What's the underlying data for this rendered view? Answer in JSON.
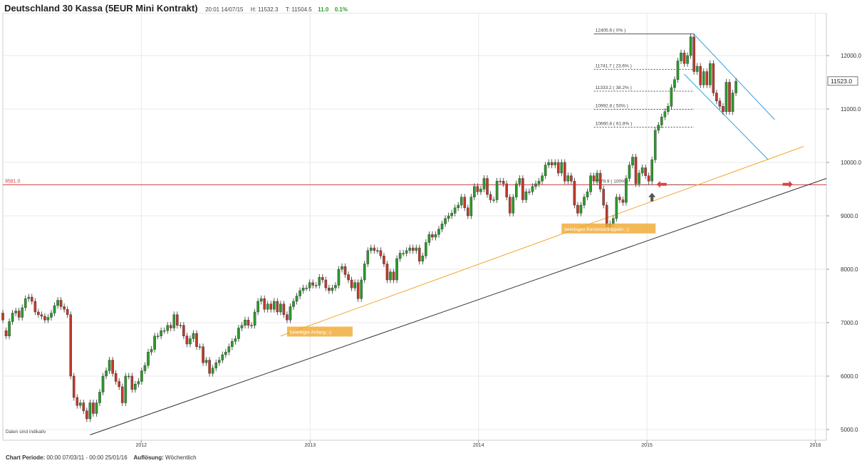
{
  "header": {
    "title": "Deutschland 30 Kassa (5EUR Mini Kontrakt)",
    "time": "20:01 14/07/15",
    "high": "H: 11532.3",
    "low": "T: 11504.5",
    "change": "11.0",
    "change_pct": "0.1%"
  },
  "footer": {
    "period_label": "Chart Periode:",
    "period_value": "00:00 07/03/11 - 00:00 25/01/16",
    "resolution_label": "Auflösung:",
    "resolution_value": "Wöchentlich"
  },
  "disclaimer": "Daten sind indikativ",
  "colors": {
    "up": "#2a9a2a",
    "down": "#c0392b",
    "grid": "#e8e8e8",
    "support": "#333333",
    "parallel": "#f0a830",
    "channel": "#3aa0d8",
    "hline": "#d04040",
    "marker": "#e04040"
  },
  "chart_data": {
    "type": "candlestick",
    "y_axis": {
      "ticks": [
        5000,
        6000,
        7000,
        8000,
        9000,
        10000,
        11000,
        12000
      ],
      "tick_labels": [
        "5000.0",
        "6000.0",
        "7000.0",
        "8000.0",
        "9000.0",
        "10000.0",
        "11000.0",
        "12000.0"
      ],
      "range": [
        4800,
        12800
      ],
      "position": "right"
    },
    "x_axis": {
      "ticks": [
        "2012-01-01",
        "2013-01-01",
        "2014-01-01",
        "2015-01-01",
        "2016-01-01"
      ],
      "tick_labels": [
        "2012",
        "2013",
        "2014",
        "2015",
        "2016"
      ],
      "range": [
        "2011-03-07",
        "2016-01-25"
      ]
    },
    "last_price": "11523.0",
    "grid": true,
    "candles": [
      [
        "2011-03-07",
        7180,
        7050
      ],
      [
        "2011-03-14",
        6850,
        6750
      ],
      [
        "2011-03-21",
        6750,
        7020
      ],
      [
        "2011-03-28",
        7020,
        7180
      ],
      [
        "2011-04-04",
        7180,
        7220
      ],
      [
        "2011-04-11",
        7220,
        7100
      ],
      [
        "2011-04-18",
        7100,
        7280
      ],
      [
        "2011-04-25",
        7280,
        7450
      ],
      [
        "2011-05-02",
        7450,
        7480
      ],
      [
        "2011-05-09",
        7480,
        7400
      ],
      [
        "2011-05-16",
        7400,
        7200
      ],
      [
        "2011-05-23",
        7200,
        7150
      ],
      [
        "2011-05-30",
        7150,
        7120
      ],
      [
        "2011-06-06",
        7120,
        7050
      ],
      [
        "2011-06-13",
        7050,
        7100
      ],
      [
        "2011-06-20",
        7100,
        7180
      ],
      [
        "2011-06-27",
        7180,
        7320
      ],
      [
        "2011-07-04",
        7320,
        7420
      ],
      [
        "2011-07-11",
        7420,
        7300
      ],
      [
        "2011-07-18",
        7300,
        7250
      ],
      [
        "2011-07-25",
        7250,
        7150
      ],
      [
        "2011-08-01",
        7150,
        6000
      ],
      [
        "2011-08-08",
        6000,
        5600
      ],
      [
        "2011-08-15",
        5600,
        5450
      ],
      [
        "2011-08-22",
        5450,
        5500
      ],
      [
        "2011-08-29",
        5500,
        5350
      ],
      [
        "2011-09-05",
        5350,
        5200
      ],
      [
        "2011-09-12",
        5200,
        5500
      ],
      [
        "2011-09-19",
        5500,
        5300
      ],
      [
        "2011-09-26",
        5300,
        5500
      ],
      [
        "2011-10-03",
        5500,
        5700
      ],
      [
        "2011-10-10",
        5700,
        6000
      ],
      [
        "2011-10-17",
        6000,
        6100
      ],
      [
        "2011-10-24",
        6100,
        6300
      ],
      [
        "2011-10-31",
        6300,
        6050
      ],
      [
        "2011-11-07",
        6050,
        5900
      ],
      [
        "2011-11-14",
        5900,
        5800
      ],
      [
        "2011-11-21",
        5800,
        5500
      ],
      [
        "2011-11-28",
        5500,
        6000
      ],
      [
        "2011-12-05",
        6000,
        6000
      ],
      [
        "2011-12-12",
        6000,
        5750
      ],
      [
        "2011-12-19",
        5750,
        5850
      ],
      [
        "2011-12-26",
        5850,
        5900
      ],
      [
        "2012-01-02",
        5900,
        6100
      ],
      [
        "2012-01-09",
        6100,
        6200
      ],
      [
        "2012-01-16",
        6200,
        6450
      ],
      [
        "2012-01-23",
        6450,
        6500
      ],
      [
        "2012-01-30",
        6500,
        6750
      ],
      [
        "2012-02-06",
        6750,
        6750
      ],
      [
        "2012-02-13",
        6750,
        6850
      ],
      [
        "2012-02-20",
        6850,
        6850
      ],
      [
        "2012-02-27",
        6850,
        6950
      ],
      [
        "2012-03-05",
        6950,
        6900
      ],
      [
        "2012-03-12",
        6900,
        7150
      ],
      [
        "2012-03-19",
        7150,
        6950
      ],
      [
        "2012-03-26",
        6950,
        6950
      ],
      [
        "2012-04-02",
        6950,
        6750
      ],
      [
        "2012-04-09",
        6750,
        6600
      ],
      [
        "2012-04-16",
        6600,
        6700
      ],
      [
        "2012-04-23",
        6700,
        6800
      ],
      [
        "2012-04-30",
        6800,
        6550
      ],
      [
        "2012-05-07",
        6550,
        6550
      ],
      [
        "2012-05-14",
        6550,
        6250
      ],
      [
        "2012-05-21",
        6250,
        6300
      ],
      [
        "2012-05-28",
        6300,
        6050
      ],
      [
        "2012-06-04",
        6050,
        6150
      ],
      [
        "2012-06-11",
        6150,
        6250
      ],
      [
        "2012-06-18",
        6250,
        6300
      ],
      [
        "2012-06-25",
        6300,
        6400
      ],
      [
        "2012-07-02",
        6400,
        6450
      ],
      [
        "2012-07-09",
        6450,
        6550
      ],
      [
        "2012-07-16",
        6550,
        6650
      ],
      [
        "2012-07-23",
        6650,
        6700
      ],
      [
        "2012-07-30",
        6700,
        6900
      ],
      [
        "2012-08-06",
        6900,
        6950
      ],
      [
        "2012-08-13",
        6950,
        7050
      ],
      [
        "2012-08-20",
        7050,
        6950
      ],
      [
        "2012-08-27",
        6950,
        6950
      ],
      [
        "2012-09-03",
        6950,
        7200
      ],
      [
        "2012-09-10",
        7200,
        7400
      ],
      [
        "2012-09-17",
        7400,
        7450
      ],
      [
        "2012-09-24",
        7450,
        7250
      ],
      [
        "2012-10-01",
        7250,
        7350
      ],
      [
        "2012-10-08",
        7350,
        7250
      ],
      [
        "2012-10-15",
        7250,
        7400
      ],
      [
        "2012-10-22",
        7400,
        7200
      ],
      [
        "2012-10-29",
        7200,
        7350
      ],
      [
        "2012-11-05",
        7350,
        7150
      ],
      [
        "2012-11-12",
        7150,
        7050
      ],
      [
        "2012-11-19",
        7050,
        7300
      ],
      [
        "2012-11-26",
        7300,
        7400
      ],
      [
        "2012-12-03",
        7400,
        7500
      ],
      [
        "2012-12-10",
        7500,
        7600
      ],
      [
        "2012-12-17",
        7600,
        7650
      ],
      [
        "2012-12-24",
        7650,
        7650
      ],
      [
        "2012-12-31",
        7650,
        7750
      ],
      [
        "2013-01-07",
        7750,
        7700
      ],
      [
        "2013-01-14",
        7700,
        7700
      ],
      [
        "2013-01-21",
        7700,
        7850
      ],
      [
        "2013-01-28",
        7850,
        7800
      ],
      [
        "2013-02-04",
        7800,
        7650
      ],
      [
        "2013-02-11",
        7650,
        7600
      ],
      [
        "2013-02-18",
        7600,
        7650
      ],
      [
        "2013-02-25",
        7650,
        7700
      ],
      [
        "2013-03-04",
        7700,
        8000
      ],
      [
        "2013-03-11",
        8000,
        8050
      ],
      [
        "2013-03-18",
        8050,
        7900
      ],
      [
        "2013-03-25",
        7900,
        7800
      ],
      [
        "2013-04-01",
        7800,
        7650
      ],
      [
        "2013-04-08",
        7650,
        7750
      ],
      [
        "2013-04-15",
        7750,
        7450
      ],
      [
        "2013-04-22",
        7450,
        7800
      ],
      [
        "2013-04-29",
        7800,
        8100
      ],
      [
        "2013-05-06",
        8100,
        8350
      ],
      [
        "2013-05-13",
        8350,
        8400
      ],
      [
        "2013-05-20",
        8400,
        8350
      ],
      [
        "2013-05-27",
        8350,
        8350
      ],
      [
        "2013-06-03",
        8350,
        8250
      ],
      [
        "2013-06-10",
        8250,
        8100
      ],
      [
        "2013-06-17",
        8100,
        7800
      ],
      [
        "2013-06-24",
        7800,
        7950
      ],
      [
        "2013-07-01",
        7950,
        7800
      ],
      [
        "2013-07-08",
        7800,
        8200
      ],
      [
        "2013-07-15",
        8200,
        8300
      ],
      [
        "2013-07-22",
        8300,
        8300
      ],
      [
        "2013-07-29",
        8300,
        8350
      ],
      [
        "2013-08-05",
        8350,
        8400
      ],
      [
        "2013-08-12",
        8400,
        8350
      ],
      [
        "2013-08-19",
        8350,
        8400
      ],
      [
        "2013-08-26",
        8400,
        8150
      ],
      [
        "2013-09-02",
        8150,
        8250
      ],
      [
        "2013-09-09",
        8250,
        8500
      ],
      [
        "2013-09-16",
        8500,
        8650
      ],
      [
        "2013-09-23",
        8650,
        8600
      ],
      [
        "2013-09-30",
        8600,
        8650
      ],
      [
        "2013-10-07",
        8650,
        8750
      ],
      [
        "2013-10-14",
        8750,
        8850
      ],
      [
        "2013-10-21",
        8850,
        8950
      ],
      [
        "2013-10-28",
        8950,
        9000
      ],
      [
        "2013-11-04",
        9000,
        9050
      ],
      [
        "2013-11-11",
        9050,
        9150
      ],
      [
        "2013-11-18",
        9150,
        9200
      ],
      [
        "2013-11-25",
        9200,
        9350
      ],
      [
        "2013-12-02",
        9350,
        9150
      ],
      [
        "2013-12-09",
        9150,
        9000
      ],
      [
        "2013-12-16",
        9000,
        9350
      ],
      [
        "2013-12-23",
        9350,
        9550
      ],
      [
        "2013-12-30",
        9550,
        9450
      ],
      [
        "2014-01-06",
        9450,
        9500
      ],
      [
        "2014-01-13",
        9500,
        9700
      ],
      [
        "2014-01-20",
        9700,
        9400
      ],
      [
        "2014-01-27",
        9400,
        9300
      ],
      [
        "2014-02-03",
        9300,
        9300
      ],
      [
        "2014-02-10",
        9300,
        9650
      ],
      [
        "2014-02-17",
        9650,
        9650
      ],
      [
        "2014-02-24",
        9650,
        9600
      ],
      [
        "2014-03-03",
        9600,
        9350
      ],
      [
        "2014-03-10",
        9350,
        9050
      ],
      [
        "2014-03-17",
        9050,
        9350
      ],
      [
        "2014-03-24",
        9350,
        9600
      ],
      [
        "2014-03-31",
        9600,
        9700
      ],
      [
        "2014-04-07",
        9700,
        9300
      ],
      [
        "2014-04-14",
        9300,
        9450
      ],
      [
        "2014-04-21",
        9450,
        9450
      ],
      [
        "2014-04-28",
        9450,
        9550
      ],
      [
        "2014-05-05",
        9550,
        9600
      ],
      [
        "2014-05-12",
        9600,
        9650
      ],
      [
        "2014-05-19",
        9650,
        9750
      ],
      [
        "2014-05-26",
        9750,
        9950
      ],
      [
        "2014-06-02",
        9950,
        10000
      ],
      [
        "2014-06-09",
        10000,
        9950
      ],
      [
        "2014-06-16",
        9950,
        10000
      ],
      [
        "2014-06-23",
        10000,
        9800
      ],
      [
        "2014-06-30",
        9800,
        10000
      ],
      [
        "2014-07-07",
        10000,
        9650
      ],
      [
        "2014-07-14",
        9650,
        9750
      ],
      [
        "2014-07-21",
        9750,
        9650
      ],
      [
        "2014-07-28",
        9650,
        9200
      ],
      [
        "2014-08-04",
        9200,
        9050
      ],
      [
        "2014-08-11",
        9050,
        9200
      ],
      [
        "2014-08-18",
        9200,
        9350
      ],
      [
        "2014-08-25",
        9350,
        9450
      ],
      [
        "2014-09-01",
        9450,
        9750
      ],
      [
        "2014-09-08",
        9750,
        9650
      ],
      [
        "2014-09-15",
        9650,
        9800
      ],
      [
        "2014-09-22",
        9800,
        9500
      ],
      [
        "2014-09-29",
        9500,
        9200
      ],
      [
        "2014-10-06",
        9200,
        8800
      ],
      [
        "2014-10-13",
        8800,
        8850
      ],
      [
        "2014-10-20",
        8850,
        8950
      ],
      [
        "2014-10-27",
        8950,
        9350
      ],
      [
        "2014-11-03",
        9350,
        9300
      ],
      [
        "2014-11-10",
        9300,
        9250
      ],
      [
        "2014-11-17",
        9250,
        9700
      ],
      [
        "2014-11-24",
        9700,
        9950
      ],
      [
        "2014-12-01",
        9950,
        10100
      ],
      [
        "2014-12-08",
        10100,
        9600
      ],
      [
        "2014-12-15",
        9600,
        9800
      ],
      [
        "2014-12-22",
        9800,
        9900
      ],
      [
        "2014-12-29",
        9900,
        9750
      ],
      [
        "2015-01-05",
        9750,
        9650
      ],
      [
        "2015-01-12",
        9650,
        10050
      ],
      [
        "2015-01-19",
        10050,
        10600
      ],
      [
        "2015-01-26",
        10600,
        10700
      ],
      [
        "2015-02-02",
        10700,
        10850
      ],
      [
        "2015-02-09",
        10850,
        10950
      ],
      [
        "2015-02-16",
        10950,
        11050
      ],
      [
        "2015-02-23",
        11050,
        11400
      ],
      [
        "2015-03-02",
        11400,
        11550
      ],
      [
        "2015-03-09",
        11550,
        11900
      ],
      [
        "2015-03-16",
        11900,
        12050
      ],
      [
        "2015-03-23",
        12050,
        11850
      ],
      [
        "2015-03-30",
        11850,
        12000
      ],
      [
        "2015-04-06",
        12000,
        12350
      ],
      [
        "2015-04-13",
        12350,
        11700
      ],
      [
        "2015-04-20",
        11700,
        11800
      ],
      [
        "2015-04-27",
        11800,
        11450
      ],
      [
        "2015-05-04",
        11450,
        11700
      ],
      [
        "2015-05-11",
        11700,
        11450
      ],
      [
        "2015-05-18",
        11450,
        11850
      ],
      [
        "2015-05-25",
        11850,
        11300
      ],
      [
        "2015-06-01",
        11300,
        11150
      ],
      [
        "2015-06-08",
        11150,
        11050
      ],
      [
        "2015-06-15",
        11050,
        10950
      ],
      [
        "2015-06-22",
        10950,
        11500
      ],
      [
        "2015-06-29",
        11500,
        10950
      ],
      [
        "2015-07-06",
        10950,
        11300
      ],
      [
        "2015-07-13",
        11300,
        11520
      ]
    ],
    "annotations": {
      "fib_levels": [
        {
          "value": 12405.6,
          "label": "12405.6 ( 0% )"
        },
        {
          "value": 11741.7,
          "label": "11741.7 ( 23.6% )"
        },
        {
          "value": 11333.2,
          "label": "11333.2 ( 38.2% )"
        },
        {
          "value": 10992.8,
          "label": "10992.8 ( 50% )"
        },
        {
          "value": 10660.8,
          "label": "10660.8 ( 61.8% )"
        },
        {
          "value": 9579.9,
          "label": "9579.9 ( 100% )"
        }
      ],
      "horizontal_line": {
        "value": 9581.0,
        "label": "9581.0"
      },
      "trendlines": [
        {
          "name": "support",
          "from": [
            "2011-09-12",
            4900
          ],
          "to": [
            "2016-01-25",
            9700
          ]
        },
        {
          "name": "parallel",
          "from": [
            "2012-10-29",
            6750
          ],
          "to": [
            "2015-12-07",
            10300
          ]
        },
        {
          "name": "channel-upper",
          "from": [
            "2015-04-13",
            12400
          ],
          "to": [
            "2015-10-05",
            10800
          ]
        },
        {
          "name": "channel-lower",
          "from": [
            "2015-03-23",
            11650
          ],
          "to": [
            "2015-09-21",
            10050
          ]
        }
      ],
      "notes": [
        {
          "text": "beliebiger Anfang ;-)",
          "at": [
            "2012-11-12",
            6820
          ]
        },
        {
          "text": "beliebiges Kerzenschnippeln ;-)",
          "at": [
            "2014-06-30",
            8750
          ]
        }
      ],
      "arrows": [
        {
          "type": "up",
          "at": [
            "2015-01-12",
            9350
          ]
        },
        {
          "type": "left",
          "at": [
            "2015-02-02",
            9590
          ]
        },
        {
          "type": "right",
          "at": [
            "2015-11-02",
            9590
          ]
        }
      ]
    }
  }
}
